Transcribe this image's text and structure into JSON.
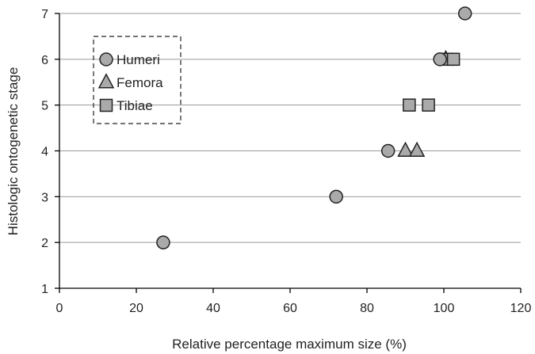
{
  "chart_data": {
    "type": "scatter",
    "xlabel": "Relative percentage maximum size (%)",
    "ylabel": "Histologic ontogenetic stage",
    "xlim": [
      0,
      120
    ],
    "ylim": [
      1,
      7
    ],
    "xticks": [
      0,
      20,
      40,
      60,
      80,
      100,
      120
    ],
    "yticks": [
      1,
      2,
      3,
      4,
      5,
      6,
      7
    ],
    "grid": "horizontal",
    "legend_position": "top-left",
    "marker_fill": "#aaaaaa",
    "marker_stroke": "#222222",
    "series": [
      {
        "name": "Humeri",
        "marker": "circle",
        "points": [
          {
            "x": 27,
            "y": 2
          },
          {
            "x": 72,
            "y": 3
          },
          {
            "x": 85.5,
            "y": 4
          },
          {
            "x": 99,
            "y": 6
          },
          {
            "x": 105.5,
            "y": 7
          }
        ]
      },
      {
        "name": "Femora",
        "marker": "triangle",
        "points": [
          {
            "x": 90,
            "y": 4
          },
          {
            "x": 93,
            "y": 4
          },
          {
            "x": 100.5,
            "y": 6
          }
        ]
      },
      {
        "name": "Tibiae",
        "marker": "square",
        "points": [
          {
            "x": 91,
            "y": 5
          },
          {
            "x": 96,
            "y": 5
          },
          {
            "x": 101,
            "y": 6
          },
          {
            "x": 102.5,
            "y": 6
          }
        ]
      }
    ]
  }
}
